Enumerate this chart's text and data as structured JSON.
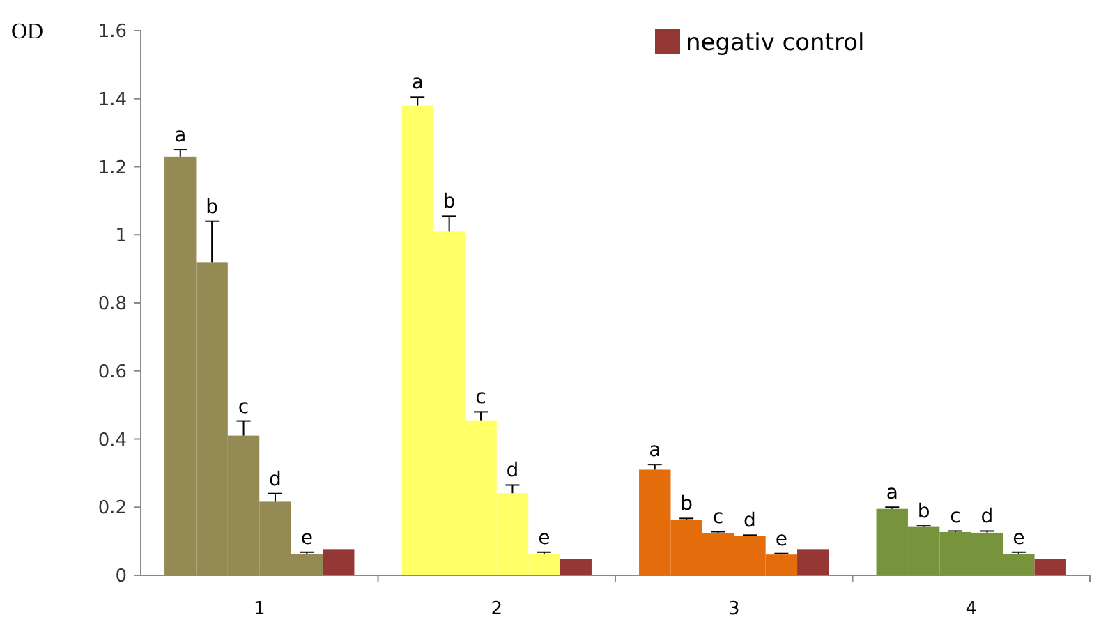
{
  "chart_data": {
    "type": "bar",
    "ylabel": "OD",
    "categories": [
      "1",
      "2",
      "3",
      "4"
    ],
    "ylim": [
      0,
      1.6
    ],
    "yticks": [
      0,
      0.2,
      0.4,
      0.6,
      0.8,
      1,
      1.2,
      1.4,
      1.6
    ],
    "grid": false,
    "legend": "top right",
    "series": [
      {
        "colors": [
          "#948a54",
          "#ffff66",
          "#e46c0a",
          "#77933c"
        ],
        "values": [
          1.23,
          1.38,
          0.31,
          0.195
        ],
        "errors": [
          [
            1.23,
            1.25
          ],
          [
            1.38,
            1.405
          ],
          [
            0.31,
            0.325
          ],
          [
            0.195,
            0.2
          ]
        ],
        "value_labels": [
          "a",
          "a",
          "a",
          "a"
        ]
      },
      {
        "colors": [
          "#948a54",
          "#ffff66",
          "#e46c0a",
          "#77933c"
        ],
        "values": [
          0.92,
          1.01,
          0.162,
          0.142
        ],
        "errors": [
          [
            0.92,
            1.04
          ],
          [
            1.01,
            1.055
          ],
          [
            0.162,
            0.167
          ],
          [
            0.142,
            0.145
          ]
        ],
        "value_labels": [
          "b",
          "b",
          "b",
          "b"
        ]
      },
      {
        "colors": [
          "#948a54",
          "#ffff66",
          "#e46c0a",
          "#77933c"
        ],
        "values": [
          0.41,
          0.455,
          0.124,
          0.127
        ],
        "errors": [
          [
            0.41,
            0.453
          ],
          [
            0.455,
            0.48
          ],
          [
            0.124,
            0.128
          ],
          [
            0.127,
            0.13
          ]
        ],
        "value_labels": [
          "c",
          "c",
          "c",
          "c"
        ]
      },
      {
        "colors": [
          "#948a54",
          "#ffff66",
          "#e46c0a",
          "#77933c"
        ],
        "values": [
          0.216,
          0.241,
          0.115,
          0.125
        ],
        "errors": [
          [
            0.216,
            0.24
          ],
          [
            0.241,
            0.265
          ],
          [
            0.115,
            0.118
          ],
          [
            0.125,
            0.13
          ]
        ],
        "value_labels": [
          "d",
          "d",
          "d",
          "d"
        ]
      },
      {
        "colors": [
          "#948a54",
          "#ffff66",
          "#e46c0a",
          "#77933c"
        ],
        "values": [
          0.063,
          0.063,
          0.061,
          0.063
        ],
        "errors": [
          [
            0.063,
            0.068
          ],
          [
            0.063,
            0.068
          ],
          [
            0.061,
            0.064
          ],
          [
            0.063,
            0.068
          ]
        ],
        "value_labels": [
          "e",
          "e",
          "e",
          "e"
        ]
      },
      {
        "name": "negativ control",
        "color": "#953735",
        "values": [
          0.075,
          0.048,
          0.075,
          0.048
        ]
      }
    ]
  }
}
